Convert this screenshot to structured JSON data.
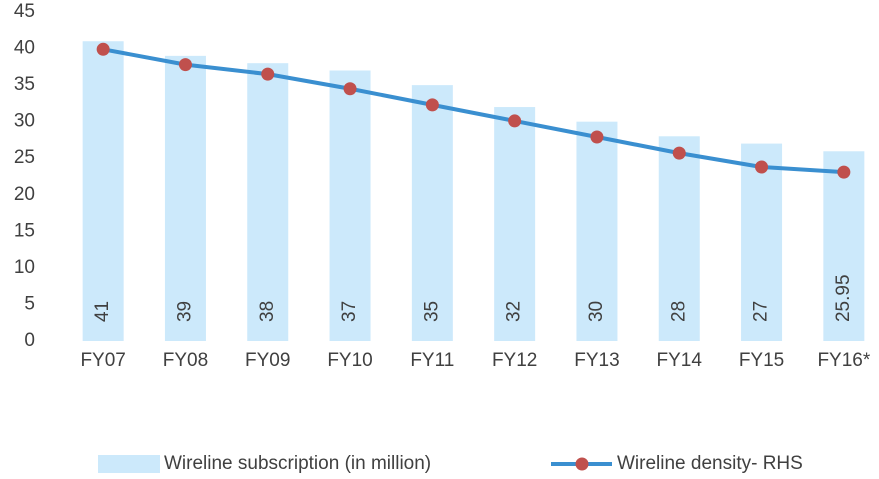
{
  "chart_data": {
    "type": "bar_line",
    "categories": [
      "FY07",
      "FY08",
      "FY09",
      "FY10",
      "FY11",
      "FY12",
      "FY13",
      "FY14",
      "FY15",
      "FY16*"
    ],
    "series": [
      {
        "name": "Wireline subscription (in million)",
        "type": "bar",
        "color": "#cce9fb",
        "values": [
          41,
          39,
          38,
          37,
          35,
          32,
          30,
          28,
          27,
          25.95
        ]
      },
      {
        "name": "Wireline density- RHS",
        "type": "line",
        "color": "#3a8fd0",
        "marker_color": "#c0504d",
        "values": [
          39.9,
          37.8,
          36.5,
          34.5,
          32.3,
          30.1,
          27.9,
          25.7,
          23.8,
          23.1
        ]
      }
    ],
    "ylim": [
      0,
      45
    ],
    "yticks": [
      0,
      5,
      10,
      15,
      20,
      25,
      30,
      35,
      40,
      45
    ],
    "legend": "bottom"
  }
}
